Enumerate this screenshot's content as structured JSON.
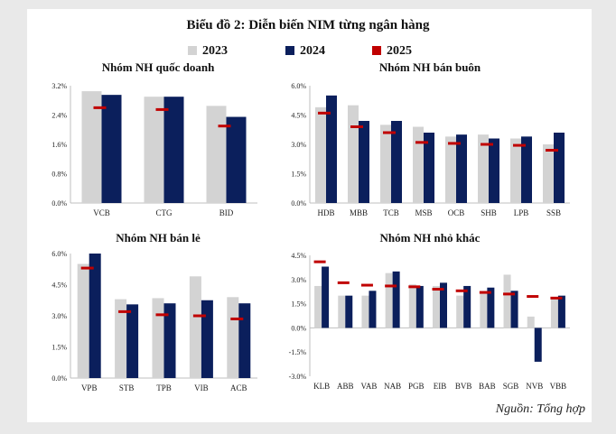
{
  "main_title": "Biểu đồ 2: Diễn biến NIM từng ngân hàng",
  "source": "Nguồn: Tổng hợp",
  "legend": [
    {
      "label": "2023",
      "color": "#d3d3d3"
    },
    {
      "label": "2024",
      "color": "#0b1f5c"
    },
    {
      "label": "2025",
      "color": "#c00000"
    }
  ],
  "chart_data": [
    {
      "type": "bar",
      "title": "Nhóm NH quốc doanh",
      "categories": [
        "VCB",
        "CTG",
        "BID"
      ],
      "series": [
        {
          "name": "2023",
          "values": [
            3.05,
            2.9,
            2.65
          ]
        },
        {
          "name": "2024",
          "values": [
            2.95,
            2.9,
            2.35
          ]
        },
        {
          "name": "2025",
          "values": [
            2.6,
            2.55,
            2.1
          ]
        }
      ],
      "ylim": [
        0,
        3.2
      ],
      "yticks": [
        "0.0%",
        "0.8%",
        "1.6%",
        "2.4%",
        "3.2%"
      ],
      "ytick_values": [
        0,
        0.8,
        1.6,
        2.4,
        3.2
      ]
    },
    {
      "type": "bar",
      "title": "Nhóm NH bán buôn",
      "categories": [
        "HDB",
        "MBB",
        "TCB",
        "MSB",
        "OCB",
        "SHB",
        "LPB",
        "SSB"
      ],
      "series": [
        {
          "name": "2023",
          "values": [
            4.9,
            5.0,
            4.0,
            3.9,
            3.4,
            3.5,
            3.3,
            3.0
          ]
        },
        {
          "name": "2024",
          "values": [
            5.5,
            4.2,
            4.2,
            3.6,
            3.5,
            3.3,
            3.4,
            3.6
          ]
        },
        {
          "name": "2025",
          "values": [
            4.6,
            3.9,
            3.6,
            3.1,
            3.05,
            3.0,
            2.95,
            2.7
          ]
        }
      ],
      "ylim": [
        0,
        6.0
      ],
      "yticks": [
        "0.0%",
        "1.5%",
        "3.0%",
        "4.5%",
        "6.0%"
      ],
      "ytick_values": [
        0,
        1.5,
        3.0,
        4.5,
        6.0
      ]
    },
    {
      "type": "bar",
      "title": "Nhóm NH bán lẻ",
      "categories": [
        "VPB",
        "STB",
        "TPB",
        "VIB",
        "ACB"
      ],
      "series": [
        {
          "name": "2023",
          "values": [
            5.5,
            3.8,
            3.85,
            4.9,
            3.9
          ]
        },
        {
          "name": "2024",
          "values": [
            6.0,
            3.55,
            3.6,
            3.75,
            3.6
          ]
        },
        {
          "name": "2025",
          "values": [
            5.3,
            3.2,
            3.05,
            3.0,
            2.85
          ]
        }
      ],
      "ylim": [
        0,
        6.0
      ],
      "yticks": [
        "0.0%",
        "1.5%",
        "3.0%",
        "4.5%",
        "6.0%"
      ],
      "ytick_values": [
        0,
        1.5,
        3.0,
        4.5,
        6.0
      ]
    },
    {
      "type": "bar",
      "title": "Nhóm NH nhỏ khác",
      "categories": [
        "KLB",
        "ABB",
        "VAB",
        "NAB",
        "PGB",
        "EIB",
        "BVB",
        "BAB",
        "SGB",
        "NVB",
        "VBB"
      ],
      "series": [
        {
          "name": "2023",
          "values": [
            2.6,
            2.0,
            2.0,
            3.4,
            2.7,
            2.6,
            2.0,
            2.3,
            3.3,
            0.7,
            1.8
          ]
        },
        {
          "name": "2024",
          "values": [
            3.8,
            2.0,
            2.3,
            3.5,
            2.6,
            2.8,
            2.6,
            2.5,
            2.3,
            -2.1,
            2.0
          ]
        },
        {
          "name": "2025",
          "values": [
            4.1,
            2.8,
            2.65,
            2.6,
            2.55,
            2.4,
            2.3,
            2.2,
            2.1,
            1.95,
            1.85
          ]
        }
      ],
      "ylim": [
        -3.0,
        4.5
      ],
      "yticks": [
        "-3.0%",
        "-1.5%",
        "0.0%",
        "1.5%",
        "3.0%",
        "4.5%"
      ],
      "ytick_values": [
        -3.0,
        -1.5,
        0,
        1.5,
        3.0,
        4.5
      ]
    }
  ]
}
